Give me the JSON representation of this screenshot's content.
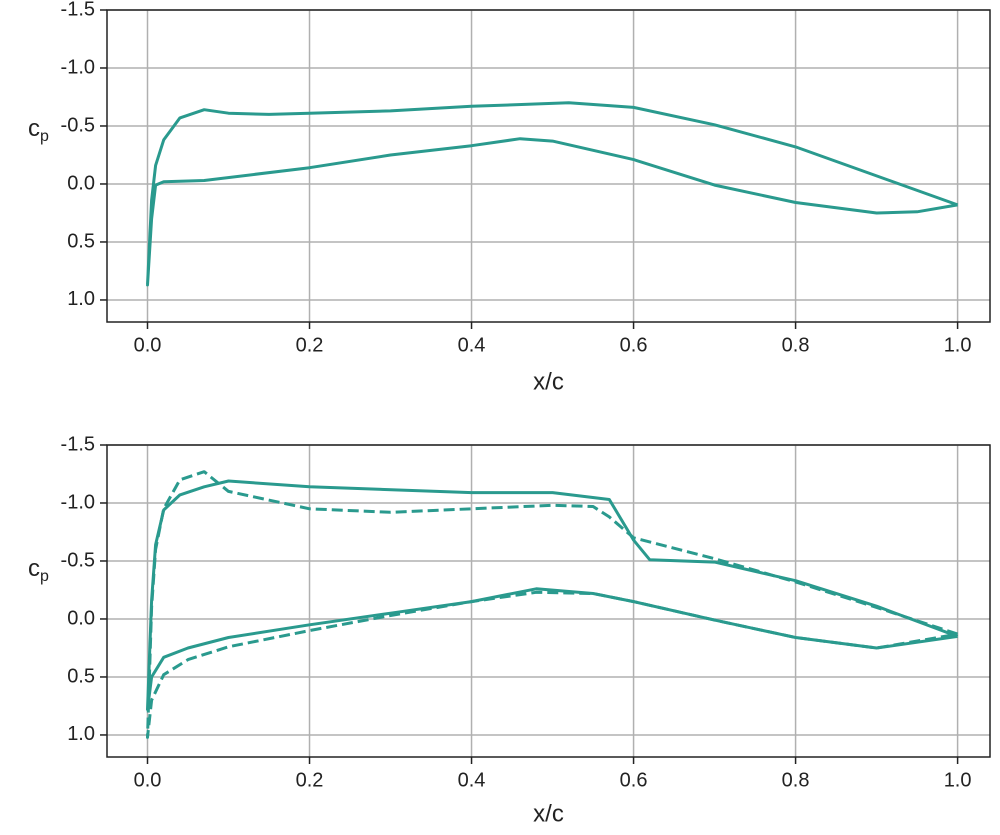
{
  "chart_data": [
    {
      "type": "line",
      "xlabel": "x/c",
      "ylabel": "c",
      "ylabel_subscript": "p",
      "xlim": [
        -0.05,
        1.04
      ],
      "ylim": [
        -1.5,
        1.19
      ],
      "y_inverted": true,
      "grid": true,
      "xticks": [
        {
          "value": 0,
          "label": "0.0"
        },
        0.2,
        0.4,
        0.6,
        0.8,
        {
          "value": 1,
          "label": "1.0"
        }
      ],
      "yticks": [
        {
          "value": -1.5,
          "label": "-1.5"
        },
        {
          "value": -1,
          "label": "-1.0"
        },
        -0.5,
        {
          "value": 0,
          "label": "0.0"
        },
        0.5,
        {
          "value": 1,
          "label": "1.0"
        }
      ],
      "series": [
        {
          "color": "#2a9a8e",
          "linestyle": "solid",
          "x": [
            1.0,
            0.9,
            0.8,
            0.7,
            0.6,
            0.52,
            0.4,
            0.3,
            0.2,
            0.15,
            0.1,
            0.07,
            0.04,
            0.02,
            0.01,
            0.005,
            0.0,
            0.005,
            0.01,
            0.02,
            0.07,
            0.2,
            0.3,
            0.4,
            0.46,
            0.5,
            0.6,
            0.7,
            0.8,
            0.9,
            0.95,
            1.0
          ],
          "values": [
            0.18,
            -0.07,
            -0.32,
            -0.51,
            -0.66,
            -0.7,
            -0.67,
            -0.63,
            -0.61,
            -0.6,
            -0.61,
            -0.64,
            -0.57,
            -0.38,
            -0.16,
            0.14,
            0.87,
            0.3,
            0.01,
            -0.02,
            -0.03,
            -0.14,
            -0.25,
            -0.33,
            -0.39,
            -0.37,
            -0.21,
            0.01,
            0.16,
            0.25,
            0.24,
            0.18
          ]
        }
      ]
    },
    {
      "type": "line",
      "xlabel": "x/c",
      "ylabel": "c",
      "ylabel_subscript": "p",
      "xlim": [
        -0.05,
        1.04
      ],
      "ylim": [
        -1.5,
        1.19
      ],
      "y_inverted": true,
      "grid": true,
      "xticks": [
        {
          "value": 0,
          "label": "0.0"
        },
        0.2,
        0.4,
        0.6,
        0.8,
        {
          "value": 1,
          "label": "1.0"
        }
      ],
      "yticks": [
        {
          "value": -1.5,
          "label": "-1.5"
        },
        {
          "value": -1,
          "label": "-1.0"
        },
        -0.5,
        {
          "value": 0,
          "label": "0.0"
        },
        0.5,
        {
          "value": 1,
          "label": "1.0"
        }
      ],
      "series": [
        {
          "color": "#2a9a8e",
          "linestyle": "solid",
          "x": [
            1.0,
            0.9,
            0.8,
            0.7,
            0.62,
            0.6,
            0.57,
            0.5,
            0.4,
            0.2,
            0.1,
            0.07,
            0.04,
            0.02,
            0.01,
            0.005,
            0.0,
            0.005,
            0.02,
            0.05,
            0.1,
            0.2,
            0.3,
            0.4,
            0.48,
            0.55,
            0.6,
            0.7,
            0.8,
            0.9,
            1.0
          ],
          "values": [
            0.15,
            -0.11,
            -0.33,
            -0.49,
            -0.51,
            -0.68,
            -1.03,
            -1.09,
            -1.09,
            -1.14,
            -1.19,
            -1.14,
            -1.07,
            -0.94,
            -0.64,
            -0.16,
            0.78,
            0.5,
            0.33,
            0.25,
            0.16,
            0.05,
            -0.05,
            -0.15,
            -0.26,
            -0.22,
            -0.15,
            0.01,
            0.16,
            0.25,
            0.15
          ]
        },
        {
          "color": "#2a9a8e",
          "linestyle": "dashed",
          "x": [
            1.0,
            0.9,
            0.8,
            0.7,
            0.6,
            0.57,
            0.55,
            0.5,
            0.4,
            0.3,
            0.2,
            0.1,
            0.07,
            0.04,
            0.02,
            0.01,
            0.005,
            0.0,
            0.005,
            0.02,
            0.05,
            0.1,
            0.2,
            0.3,
            0.4,
            0.48,
            0.55,
            0.6,
            0.7,
            0.8,
            0.9,
            1.0
          ],
          "values": [
            0.13,
            -0.1,
            -0.32,
            -0.52,
            -0.7,
            -0.88,
            -0.97,
            -0.98,
            -0.95,
            -0.92,
            -0.95,
            -1.1,
            -1.27,
            -1.2,
            -0.95,
            -0.6,
            -0.1,
            1.02,
            0.7,
            0.48,
            0.35,
            0.24,
            0.1,
            -0.03,
            -0.15,
            -0.23,
            -0.22,
            -0.15,
            0.01,
            0.16,
            0.25,
            0.13
          ]
        }
      ]
    }
  ]
}
